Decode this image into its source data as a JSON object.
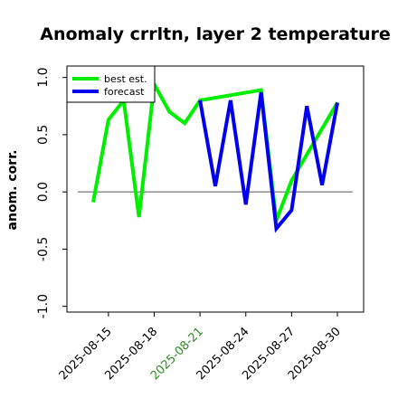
{
  "chart_data": {
    "type": "line",
    "title": "Anomaly crrltn, layer 2 temperature",
    "ylabel": "anom. corr.",
    "xlabel": "",
    "ylim": [
      -1.05,
      1.1
    ],
    "yticks": [
      1.0,
      0.5,
      0.0,
      -0.5,
      -1.0
    ],
    "ytick_labels": [
      "1.0",
      "0.5",
      "0.0",
      "-0.5",
      "-1.0"
    ],
    "x_dates": [
      "2025-08-14",
      "2025-08-15",
      "2025-08-16",
      "2025-08-17",
      "2025-08-18",
      "2025-08-19",
      "2025-08-20",
      "2025-08-21",
      "2025-08-22",
      "2025-08-23",
      "2025-08-24",
      "2025-08-25",
      "2025-08-26",
      "2025-08-27",
      "2025-08-28",
      "2025-08-29",
      "2025-08-30"
    ],
    "xticks": [
      {
        "date": "2025-08-15",
        "label": "2025-08-15",
        "color": "#000000"
      },
      {
        "date": "2025-08-18",
        "label": "2025-08-18",
        "color": "#000000"
      },
      {
        "date": "2025-08-21",
        "label": "2025-08-21",
        "color": "#2e8b22"
      },
      {
        "date": "2025-08-24",
        "label": "2025-08-24",
        "color": "#000000"
      },
      {
        "date": "2025-08-27",
        "label": "2025-08-27",
        "color": "#000000"
      },
      {
        "date": "2025-08-30",
        "label": "2025-08-30",
        "color": "#000000"
      }
    ],
    "series": [
      {
        "name": "best est.",
        "color": "#00ee00",
        "values": [
          -0.09,
          0.63,
          0.8,
          -0.22,
          0.94,
          0.7,
          0.6,
          0.8,
          null,
          null,
          null,
          0.89,
          -0.25,
          0.1,
          null,
          null,
          0.78
        ]
      },
      {
        "name": "forecast",
        "color": "#0000ee",
        "values": [
          null,
          null,
          null,
          null,
          null,
          null,
          null,
          0.8,
          0.05,
          0.8,
          -0.11,
          0.87,
          -0.32,
          -0.16,
          0.75,
          0.06,
          0.78
        ]
      }
    ],
    "reference_line": 0.0,
    "legend_position": "upper-left"
  }
}
